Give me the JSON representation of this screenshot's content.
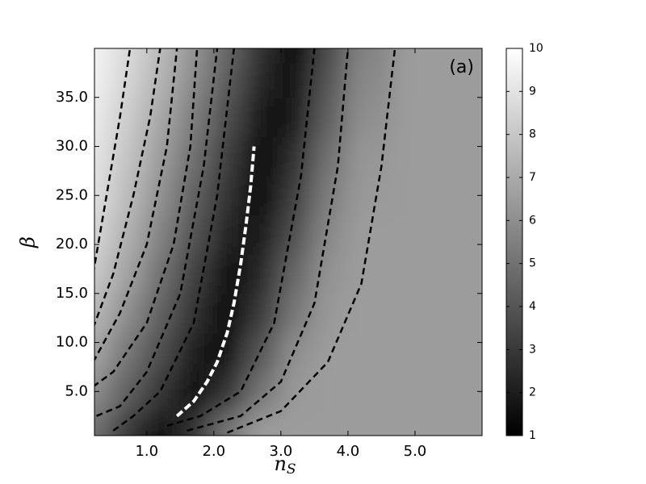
{
  "chart_data": {
    "type": "heatmap",
    "annotation": "(a)",
    "xlabel": "n",
    "xlabel_sub": "S",
    "ylabel": "β",
    "colormap": "gray",
    "x": [
      0.2,
      0.7,
      1.2,
      1.7,
      2.2,
      2.7,
      3.2,
      3.7,
      4.2,
      5.1,
      6.0
    ],
    "y": [
      1,
      5,
      9,
      13,
      17,
      21,
      25,
      29,
      33,
      37,
      40
    ],
    "z": [
      [
        5,
        3,
        1.3,
        2.8,
        5.1,
        6.5,
        6.5,
        6.5,
        6.5,
        6.5,
        6.5
      ],
      [
        6,
        4.4,
        2.9,
        1.3,
        2.8,
        5.1,
        6.4,
        6.5,
        6.5,
        6.5,
        6.5
      ],
      [
        6.8,
        5.2,
        3.7,
        2.1,
        1.6,
        4,
        6,
        6.5,
        6.5,
        6.5,
        6.5
      ],
      [
        7.5,
        6,
        4.4,
        2.8,
        1.2,
        3,
        5.2,
        6.4,
        6.5,
        6.5,
        6.5
      ],
      [
        8.1,
        6.7,
        5,
        3.3,
        1.6,
        2.4,
        4.6,
        6.2,
        6.5,
        6.5,
        6.5
      ],
      [
        8.6,
        7.2,
        5.6,
        3.9,
        2.2,
        1.7,
        3.8,
        5.8,
        6.5,
        6.5,
        6.5
      ],
      [
        8.9,
        7.6,
        6.1,
        4.4,
        2.7,
        1.1,
        3.2,
        5.4,
        6.4,
        6.5,
        6.5
      ],
      [
        9.1,
        7.9,
        6.5,
        4.9,
        3.2,
        1.2,
        2.6,
        4.9,
        6.3,
        6.5,
        6.5
      ],
      [
        9.3,
        8.2,
        6.9,
        5.4,
        3.7,
        1.9,
        1.8,
        4.3,
        6,
        6.5,
        6.5
      ],
      [
        9.5,
        8.5,
        7.3,
        5.9,
        4.2,
        2.4,
        1.5,
        3.9,
        5.8,
        6.5,
        6.5
      ],
      [
        9.6,
        8.7,
        7.6,
        6.2,
        4.6,
        2.8,
        1.2,
        3.5,
        5.6,
        6.5,
        6.5
      ]
    ],
    "clim": [
      1,
      10
    ],
    "cticks": [
      1,
      2,
      3,
      4,
      5,
      6,
      7,
      8,
      9,
      10
    ],
    "xlim": [
      0.22,
      6.0
    ],
    "ylim": [
      0.5,
      40
    ],
    "xticks": [
      {
        "value": 1,
        "label": "1.0"
      },
      {
        "value": 2,
        "label": "2.0"
      },
      {
        "value": 3,
        "label": "3.0"
      },
      {
        "value": 4,
        "label": "4.0"
      },
      {
        "value": 5,
        "label": "5.0"
      }
    ],
    "yticks": [
      {
        "value": 5,
        "label": "5.0"
      },
      {
        "value": 10,
        "label": "10.0"
      },
      {
        "value": 15,
        "label": "15.0"
      },
      {
        "value": 20,
        "label": "20.0"
      },
      {
        "value": 25,
        "label": "25.0"
      },
      {
        "value": 30,
        "label": "30.0"
      },
      {
        "value": 35,
        "label": "35.0"
      }
    ],
    "contour_color": "#000000",
    "contours": [
      {
        "x": [
          0.2,
          0.4,
          0.6,
          0.75
        ],
        "y": [
          17,
          25,
          33,
          40
        ]
      },
      {
        "x": [
          0.2,
          0.5,
          0.8,
          1.05,
          1.2
        ],
        "y": [
          11.5,
          17,
          25,
          33,
          40
        ]
      },
      {
        "x": [
          0.2,
          0.6,
          1.0,
          1.3,
          1.45
        ],
        "y": [
          8,
          13,
          20,
          30,
          40
        ]
      },
      {
        "x": [
          0.2,
          0.5,
          1.0,
          1.4,
          1.65,
          1.75
        ],
        "y": [
          5.5,
          7,
          12,
          20,
          30,
          40
        ]
      },
      {
        "x": [
          0.25,
          0.6,
          1.0,
          1.5,
          1.85,
          2.05
        ],
        "y": [
          2.5,
          3.5,
          7,
          15,
          28,
          40
        ]
      },
      {
        "x": [
          0.5,
          0.8,
          1.2,
          1.7,
          2.05,
          2.3
        ],
        "y": [
          1,
          2.5,
          5,
          12,
          25,
          40
        ]
      },
      {
        "x": [
          1.3,
          1.8,
          2.4,
          2.9,
          3.3,
          3.5
        ],
        "y": [
          1.5,
          2.5,
          5,
          12,
          27,
          40
        ]
      },
      {
        "x": [
          1.6,
          2.4,
          3.0,
          3.5,
          3.85,
          4.0
        ],
        "y": [
          1,
          2.5,
          6,
          14,
          28,
          40
        ]
      },
      {
        "x": [
          2.2,
          3.0,
          3.7,
          4.2,
          4.5,
          4.7
        ],
        "y": [
          0.8,
          3,
          8,
          16,
          28,
          40
        ]
      }
    ],
    "curve": {
      "color": "#ffffff",
      "x": [
        1.45,
        1.7,
        1.9,
        2.05,
        2.2,
        2.3,
        2.4,
        2.48,
        2.55,
        2.6
      ],
      "y": [
        2.5,
        4,
        6,
        8,
        11,
        14,
        18,
        22,
        26,
        30
      ]
    }
  }
}
